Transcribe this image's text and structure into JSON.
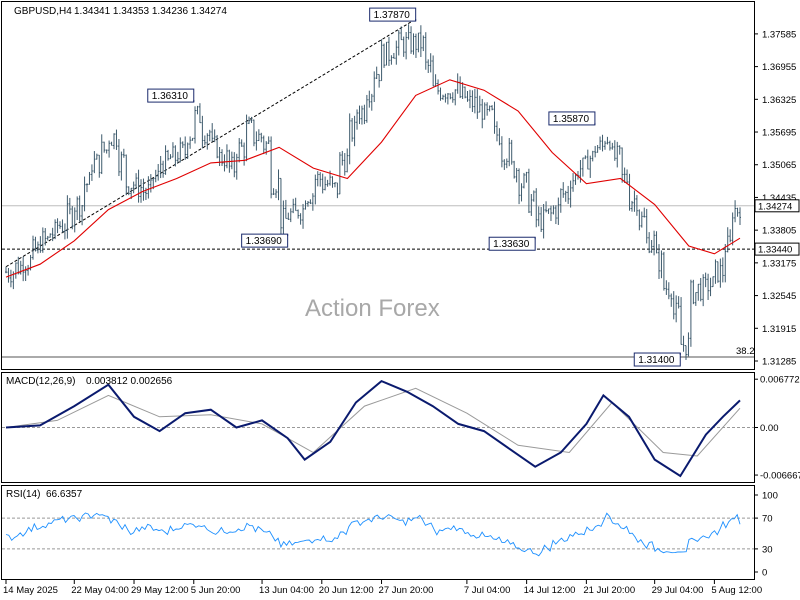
{
  "watermark": "Action Forex",
  "chart_data": [
    {
      "type": "candlestick",
      "pane": "price",
      "symbol": "GBPUSD",
      "timeframe": "H4",
      "header": {
        "symbol_tf": "GBPUSD,H4",
        "ohlc": "1.34341 1.34353 1.34236 1.34274"
      },
      "yticks": [
        "1.37585",
        "1.36955",
        "1.36325",
        "1.35695",
        "1.35065",
        "1.34435",
        "1.33805",
        "1.33175",
        "1.32545",
        "1.31915",
        "1.31285"
      ],
      "ylim": [
        1.3115,
        1.3818
      ],
      "last_price": 1.34274,
      "last_price_label": "1.34274",
      "horizontal_line": {
        "value": 1.3344,
        "label": "1.33440",
        "style": "dashed"
      },
      "fib_level": {
        "value": 1.314,
        "label": "38.2"
      },
      "moving_average": {
        "color": "#e00000"
      },
      "candle_color": "#3d5a6c",
      "swing_labels": [
        {
          "label": "1.36310",
          "value": 1.3631,
          "date": "2025-06-05"
        },
        {
          "label": "1.37870",
          "value": 1.3787,
          "date": "2025-07-01"
        },
        {
          "label": "1.33690",
          "value": 1.3369,
          "date": "2025-06-16"
        },
        {
          "label": "1.35870",
          "value": 1.3587,
          "date": "2025-07-22"
        },
        {
          "label": "1.33630",
          "value": 1.3363,
          "date": "2025-07-15"
        },
        {
          "label": "1.31400",
          "value": 1.314,
          "date": "2025-08-01"
        }
      ],
      "trendline": {
        "from": {
          "date": "2025-05-14",
          "value": 1.331
        },
        "to": {
          "date": "2025-07-01",
          "value": 1.3787
        },
        "style": "dashed"
      },
      "close_path": [
        {
          "date": "2025-05-14",
          "value": 1.33
        },
        {
          "date": "2025-05-16",
          "value": 1.332
        },
        {
          "date": "2025-05-18",
          "value": 1.336
        },
        {
          "date": "2025-05-20",
          "value": 1.339
        },
        {
          "date": "2025-05-22",
          "value": 1.343
        },
        {
          "date": "2025-05-24",
          "value": 1.351
        },
        {
          "date": "2025-05-26",
          "value": 1.356
        },
        {
          "date": "2025-05-28",
          "value": 1.347
        },
        {
          "date": "2025-05-30",
          "value": 1.3455
        },
        {
          "date": "2025-06-01",
          "value": 1.351
        },
        {
          "date": "2025-06-03",
          "value": 1.353
        },
        {
          "date": "2025-06-05",
          "value": 1.36
        },
        {
          "date": "2025-06-07",
          "value": 1.354
        },
        {
          "date": "2025-06-09",
          "value": 1.35
        },
        {
          "date": "2025-06-11",
          "value": 1.3575
        },
        {
          "date": "2025-06-13",
          "value": 1.3545
        },
        {
          "date": "2025-06-15",
          "value": 1.34
        },
        {
          "date": "2025-06-17",
          "value": 1.342
        },
        {
          "date": "2025-06-19",
          "value": 1.348
        },
        {
          "date": "2025-06-21",
          "value": 1.346
        },
        {
          "date": "2025-06-23",
          "value": 1.357
        },
        {
          "date": "2025-06-25",
          "value": 1.365
        },
        {
          "date": "2025-06-27",
          "value": 1.372
        },
        {
          "date": "2025-06-29",
          "value": 1.374
        },
        {
          "date": "2025-07-01",
          "value": 1.374
        },
        {
          "date": "2025-07-03",
          "value": 1.365
        },
        {
          "date": "2025-07-05",
          "value": 1.365
        },
        {
          "date": "2025-07-07",
          "value": 1.3625
        },
        {
          "date": "2025-07-09",
          "value": 1.36
        },
        {
          "date": "2025-07-11",
          "value": 1.353
        },
        {
          "date": "2025-07-13",
          "value": 1.347
        },
        {
          "date": "2025-07-15",
          "value": 1.34
        },
        {
          "date": "2025-07-17",
          "value": 1.342
        },
        {
          "date": "2025-07-19",
          "value": 1.348
        },
        {
          "date": "2025-07-21",
          "value": 1.352
        },
        {
          "date": "2025-07-23",
          "value": 1.356
        },
        {
          "date": "2025-07-25",
          "value": 1.348
        },
        {
          "date": "2025-07-27",
          "value": 1.34
        },
        {
          "date": "2025-07-29",
          "value": 1.332
        },
        {
          "date": "2025-07-31",
          "value": 1.322
        },
        {
          "date": "2025-08-01",
          "value": 1.316
        },
        {
          "date": "2025-08-02",
          "value": 1.326
        },
        {
          "date": "2025-08-04",
          "value": 1.3275
        },
        {
          "date": "2025-08-05",
          "value": 1.33
        },
        {
          "date": "2025-08-06",
          "value": 1.335
        },
        {
          "date": "2025-08-07",
          "value": 1.342
        },
        {
          "date": "2025-08-08",
          "value": 1.3427
        }
      ],
      "ma_path": [
        {
          "date": "2025-05-14",
          "value": 1.329
        },
        {
          "date": "2025-05-18",
          "value": 1.3315
        },
        {
          "date": "2025-05-22",
          "value": 1.336
        },
        {
          "date": "2025-05-26",
          "value": 1.342
        },
        {
          "date": "2025-05-30",
          "value": 1.3455
        },
        {
          "date": "2025-06-03",
          "value": 1.348
        },
        {
          "date": "2025-06-07",
          "value": 1.351
        },
        {
          "date": "2025-06-11",
          "value": 1.3515
        },
        {
          "date": "2025-06-15",
          "value": 1.354
        },
        {
          "date": "2025-06-19",
          "value": 1.35
        },
        {
          "date": "2025-06-23",
          "value": 1.348
        },
        {
          "date": "2025-06-27",
          "value": 1.355
        },
        {
          "date": "2025-07-01",
          "value": 1.364
        },
        {
          "date": "2025-07-05",
          "value": 1.367
        },
        {
          "date": "2025-07-09",
          "value": 1.365
        },
        {
          "date": "2025-07-13",
          "value": 1.361
        },
        {
          "date": "2025-07-17",
          "value": 1.353
        },
        {
          "date": "2025-07-21",
          "value": 1.347
        },
        {
          "date": "2025-07-25",
          "value": 1.348
        },
        {
          "date": "2025-07-29",
          "value": 1.343
        },
        {
          "date": "2025-08-02",
          "value": 1.335
        },
        {
          "date": "2025-08-05",
          "value": 1.3335
        },
        {
          "date": "2025-08-08",
          "value": 1.3365
        }
      ]
    },
    {
      "type": "line",
      "pane": "macd",
      "header": {
        "name": "MACD(12,26,9)",
        "values": "0.003812 0.002656"
      },
      "yticks": [
        "0.006772",
        "0.00",
        "-0.006667"
      ],
      "ylim": [
        -0.0075,
        0.0075
      ],
      "series": [
        {
          "role": "macd",
          "color": "#0a1a6e",
          "values": [
            {
              "date": "2025-05-14",
              "value": 0.0
            },
            {
              "date": "2025-05-18",
              "value": 0.0003
            },
            {
              "date": "2025-05-22",
              "value": 0.003
            },
            {
              "date": "2025-05-26",
              "value": 0.006
            },
            {
              "date": "2025-05-29",
              "value": 0.0015
            },
            {
              "date": "2025-06-01",
              "value": -0.0005
            },
            {
              "date": "2025-06-04",
              "value": 0.002
            },
            {
              "date": "2025-06-07",
              "value": 0.0025
            },
            {
              "date": "2025-06-10",
              "value": 0.0
            },
            {
              "date": "2025-06-13",
              "value": 0.001
            },
            {
              "date": "2025-06-16",
              "value": -0.0015
            },
            {
              "date": "2025-06-18",
              "value": -0.0045
            },
            {
              "date": "2025-06-21",
              "value": -0.002
            },
            {
              "date": "2025-06-24",
              "value": 0.0035
            },
            {
              "date": "2025-06-27",
              "value": 0.0065
            },
            {
              "date": "2025-06-30",
              "value": 0.005
            },
            {
              "date": "2025-07-03",
              "value": 0.003
            },
            {
              "date": "2025-07-06",
              "value": 0.0005
            },
            {
              "date": "2025-07-09",
              "value": -0.0005
            },
            {
              "date": "2025-07-12",
              "value": -0.003
            },
            {
              "date": "2025-07-15",
              "value": -0.0055
            },
            {
              "date": "2025-07-18",
              "value": -0.0035
            },
            {
              "date": "2025-07-21",
              "value": 0.0005
            },
            {
              "date": "2025-07-23",
              "value": 0.0045
            },
            {
              "date": "2025-07-26",
              "value": 0.0015
            },
            {
              "date": "2025-07-29",
              "value": -0.0045
            },
            {
              "date": "2025-08-01",
              "value": -0.0068
            },
            {
              "date": "2025-08-04",
              "value": -0.001
            },
            {
              "date": "2025-08-06",
              "value": 0.0015
            },
            {
              "date": "2025-08-08",
              "value": 0.0038
            }
          ]
        },
        {
          "role": "signal",
          "color": "#9a9a9a",
          "values": [
            {
              "date": "2025-05-14",
              "value": 0.0
            },
            {
              "date": "2025-05-20",
              "value": 0.001
            },
            {
              "date": "2025-05-26",
              "value": 0.0045
            },
            {
              "date": "2025-06-01",
              "value": 0.0015
            },
            {
              "date": "2025-06-07",
              "value": 0.0018
            },
            {
              "date": "2025-06-13",
              "value": 0.0005
            },
            {
              "date": "2025-06-19",
              "value": -0.0035
            },
            {
              "date": "2025-06-25",
              "value": 0.003
            },
            {
              "date": "2025-07-01",
              "value": 0.0055
            },
            {
              "date": "2025-07-07",
              "value": 0.002
            },
            {
              "date": "2025-07-13",
              "value": -0.0025
            },
            {
              "date": "2025-07-19",
              "value": -0.0035
            },
            {
              "date": "2025-07-24",
              "value": 0.0035
            },
            {
              "date": "2025-07-30",
              "value": -0.0035
            },
            {
              "date": "2025-08-03",
              "value": -0.004
            },
            {
              "date": "2025-08-08",
              "value": 0.0027
            }
          ]
        }
      ]
    },
    {
      "type": "line",
      "pane": "rsi",
      "header": {
        "name": "RSI(14)",
        "value": "66.6357"
      },
      "yticks": [
        "100",
        "70",
        "30",
        "0"
      ],
      "levels": [
        70,
        30
      ],
      "ylim": [
        0,
        100
      ],
      "series": [
        {
          "role": "rsi",
          "color": "#1e90ff",
          "values": [
            {
              "date": "2025-05-14",
              "value": 45
            },
            {
              "date": "2025-05-16",
              "value": 55
            },
            {
              "date": "2025-05-18",
              "value": 62
            },
            {
              "date": "2025-05-20",
              "value": 68
            },
            {
              "date": "2025-05-22",
              "value": 70
            },
            {
              "date": "2025-05-24",
              "value": 76
            },
            {
              "date": "2025-05-26",
              "value": 66
            },
            {
              "date": "2025-05-28",
              "value": 52
            },
            {
              "date": "2025-05-30",
              "value": 58
            },
            {
              "date": "2025-06-01",
              "value": 52
            },
            {
              "date": "2025-06-03",
              "value": 60
            },
            {
              "date": "2025-06-05",
              "value": 62
            },
            {
              "date": "2025-06-07",
              "value": 52
            },
            {
              "date": "2025-06-09",
              "value": 55
            },
            {
              "date": "2025-06-11",
              "value": 60
            },
            {
              "date": "2025-06-13",
              "value": 50
            },
            {
              "date": "2025-06-15",
              "value": 35
            },
            {
              "date": "2025-06-17",
              "value": 38
            },
            {
              "date": "2025-06-19",
              "value": 45
            },
            {
              "date": "2025-06-21",
              "value": 42
            },
            {
              "date": "2025-06-23",
              "value": 62
            },
            {
              "date": "2025-06-25",
              "value": 68
            },
            {
              "date": "2025-06-27",
              "value": 72
            },
            {
              "date": "2025-06-29",
              "value": 65
            },
            {
              "date": "2025-07-01",
              "value": 70
            },
            {
              "date": "2025-07-03",
              "value": 52
            },
            {
              "date": "2025-07-05",
              "value": 58
            },
            {
              "date": "2025-07-07",
              "value": 50
            },
            {
              "date": "2025-07-09",
              "value": 45
            },
            {
              "date": "2025-07-11",
              "value": 38
            },
            {
              "date": "2025-07-13",
              "value": 30
            },
            {
              "date": "2025-07-15",
              "value": 25
            },
            {
              "date": "2025-07-17",
              "value": 38
            },
            {
              "date": "2025-07-19",
              "value": 48
            },
            {
              "date": "2025-07-21",
              "value": 55
            },
            {
              "date": "2025-07-23",
              "value": 72
            },
            {
              "date": "2025-07-25",
              "value": 58
            },
            {
              "date": "2025-07-27",
              "value": 40
            },
            {
              "date": "2025-07-29",
              "value": 30
            },
            {
              "date": "2025-07-31",
              "value": 28
            },
            {
              "date": "2025-08-01",
              "value": 22
            },
            {
              "date": "2025-08-02",
              "value": 40
            },
            {
              "date": "2025-08-04",
              "value": 48
            },
            {
              "date": "2025-08-05",
              "value": 52
            },
            {
              "date": "2025-08-06",
              "value": 62
            },
            {
              "date": "2025-08-07",
              "value": 72
            },
            {
              "date": "2025-08-08",
              "value": 66
            }
          ]
        }
      ]
    }
  ],
  "xaxis": {
    "ticks": [
      {
        "date": "2025-05-14",
        "label": "14 May 2025"
      },
      {
        "date": "2025-05-22",
        "label": "22 May 04:00"
      },
      {
        "date": "2025-05-29",
        "label": "29 May 12:00"
      },
      {
        "date": "2025-06-05",
        "label": "5 Jun 20:00"
      },
      {
        "date": "2025-06-13",
        "label": "13 Jun 04:00"
      },
      {
        "date": "2025-06-20",
        "label": "20 Jun 12:00"
      },
      {
        "date": "2025-06-27",
        "label": "27 Jun 20:00"
      },
      {
        "date": "2025-07-07",
        "label": "7 Jul 04:00"
      },
      {
        "date": "2025-07-14",
        "label": "14 Jul 12:00"
      },
      {
        "date": "2025-07-21",
        "label": "21 Jul 20:00"
      },
      {
        "date": "2025-07-29",
        "label": "29 Jul 04:00"
      },
      {
        "date": "2025-08-05",
        "label": "5 Aug 12:00"
      }
    ]
  }
}
